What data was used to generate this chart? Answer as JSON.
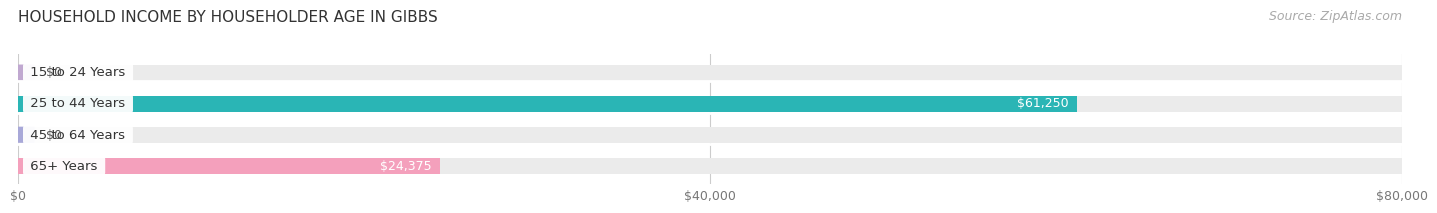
{
  "title": "HOUSEHOLD INCOME BY HOUSEHOLDER AGE IN GIBBS",
  "source": "Source: ZipAtlas.com",
  "categories": [
    "15 to 24 Years",
    "25 to 44 Years",
    "45 to 64 Years",
    "65+ Years"
  ],
  "values": [
    0,
    61250,
    0,
    24375
  ],
  "bar_colors": [
    "#c0a8d0",
    "#2ab5b5",
    "#a8a8d8",
    "#f4a0bc"
  ],
  "bar_bg_color": "#ebebeb",
  "xlim": [
    0,
    80000
  ],
  "xticks": [
    0,
    40000,
    80000
  ],
  "xtick_labels": [
    "$0",
    "$40,000",
    "$80,000"
  ],
  "value_label_color_inside": "#ffffff",
  "value_label_color_outside": "#555555",
  "title_fontsize": 11,
  "source_fontsize": 9,
  "tick_fontsize": 9,
  "label_fontsize": 9.5,
  "value_fontsize": 9,
  "background_color": "#ffffff",
  "bar_height": 0.52,
  "grid_color": "#cccccc",
  "label_bg_color": "#ffffff"
}
